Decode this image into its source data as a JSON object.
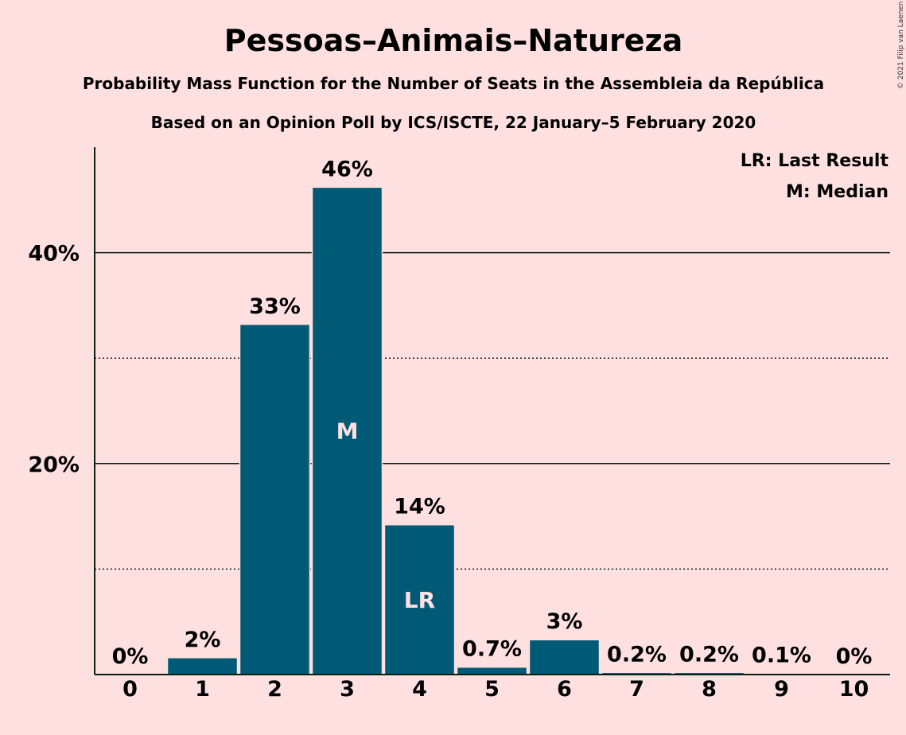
{
  "chart_data": {
    "type": "bar",
    "title": "Pessoas–Animais–Natureza",
    "subtitle": "Probability Mass Function for the Number of Seats in the Assembleia da República",
    "subtitle2": "Based on an Opinion Poll by ICS/ISCTE, 22 January–5 February 2020",
    "copyright": "© 2021 Filip van Laenen",
    "categories": [
      "0",
      "1",
      "2",
      "3",
      "4",
      "5",
      "6",
      "7",
      "8",
      "9",
      "10"
    ],
    "values": [
      0,
      1.6,
      33.2,
      46.2,
      14.2,
      0.7,
      3.3,
      0.2,
      0.2,
      0.1,
      0
    ],
    "value_labels": [
      "0%",
      "2%",
      "33%",
      "46%",
      "14%",
      "0.7%",
      "3%",
      "0.2%",
      "0.2%",
      "0.1%",
      "0%"
    ],
    "ylim": [
      0,
      50
    ],
    "y_ticks": [
      {
        "value": 20,
        "label": "20%"
      },
      {
        "value": 40,
        "label": "40%"
      }
    ],
    "minor_gridlines": [
      10,
      30
    ],
    "bar_color": "#005a75",
    "markers": [
      {
        "category": "3",
        "text": "M"
      },
      {
        "category": "4",
        "text": "LR"
      }
    ],
    "legend": [
      "LR: Last Result",
      "M: Median"
    ],
    "legend_position": "top-right"
  }
}
